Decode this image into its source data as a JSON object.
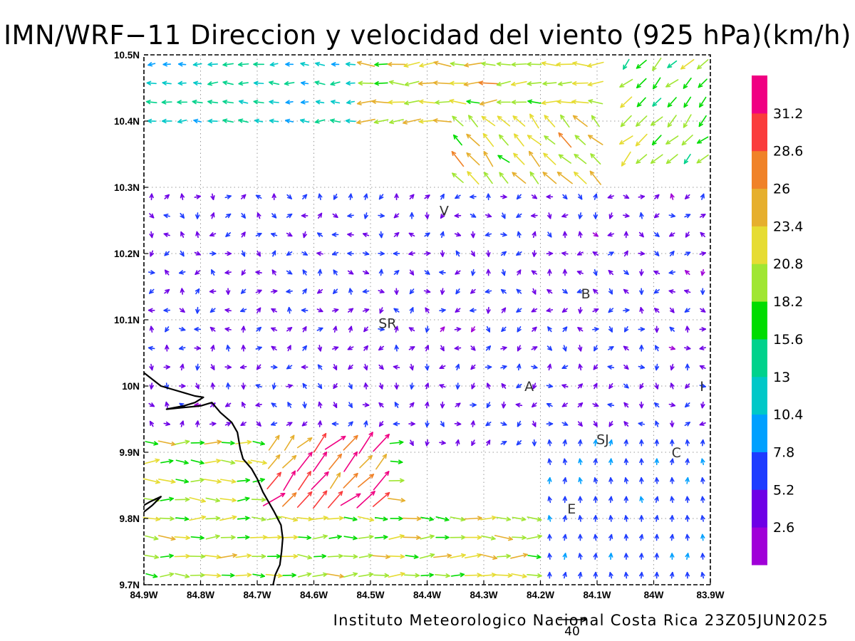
{
  "title": "IMN/WRF−11 Direccion y velocidad del viento (925 hPa)(km/h)",
  "footer": "Instituto Meteorologico Nacional Costa Rica 23Z05JUN2025",
  "reference_vector": {
    "value": 40,
    "label": "40"
  },
  "map": {
    "lon_range": [
      -84.9,
      -83.9
    ],
    "lat_range": [
      9.7,
      10.5
    ],
    "lon_ticks": [
      {
        "value": -84.9,
        "label": "84.9W"
      },
      {
        "value": -84.8,
        "label": "84.8W"
      },
      {
        "value": -84.7,
        "label": "84.7W"
      },
      {
        "value": -84.6,
        "label": "84.6W"
      },
      {
        "value": -84.5,
        "label": "84.5W"
      },
      {
        "value": -84.4,
        "label": "84.4W"
      },
      {
        "value": -84.3,
        "label": "84.3W"
      },
      {
        "value": -84.2,
        "label": "84.2W"
      },
      {
        "value": -84.1,
        "label": "84.1W"
      },
      {
        "value": -84.0,
        "label": "84W"
      },
      {
        "value": -83.9,
        "label": "83.9W"
      }
    ],
    "lat_ticks": [
      {
        "value": 9.7,
        "label": "9.7N"
      },
      {
        "value": 9.8,
        "label": "9.8N"
      },
      {
        "value": 9.9,
        "label": "9.9N"
      },
      {
        "value": 10.0,
        "label": "10N"
      },
      {
        "value": 10.1,
        "label": "10.1N"
      },
      {
        "value": 10.2,
        "label": "10.2N"
      },
      {
        "value": 10.3,
        "label": "10.3N"
      },
      {
        "value": 10.4,
        "label": "10.4N"
      },
      {
        "value": 10.5,
        "label": "10.5N"
      }
    ],
    "grid": "dotted",
    "coastline": [
      [
        [
          -84.9,
          10.02
        ],
        [
          -84.87,
          10.0
        ],
        [
          -84.83,
          9.99
        ],
        [
          -84.81,
          9.985
        ],
        [
          -84.795,
          9.983
        ],
        [
          -84.81,
          9.975
        ],
        [
          -84.83,
          9.97
        ],
        [
          -84.86,
          9.965
        ],
        [
          -84.8,
          9.97
        ],
        [
          -84.78,
          9.975
        ],
        [
          -84.765,
          9.96
        ],
        [
          -84.745,
          9.945
        ],
        [
          -84.735,
          9.93
        ],
        [
          -84.73,
          9.905
        ],
        [
          -84.725,
          9.89
        ],
        [
          -84.71,
          9.875
        ],
        [
          -84.7,
          9.86
        ],
        [
          -84.69,
          9.84
        ],
        [
          -84.67,
          9.81
        ],
        [
          -84.658,
          9.79
        ],
        [
          -84.655,
          9.77
        ],
        [
          -84.657,
          9.75
        ],
        [
          -84.66,
          9.73
        ],
        [
          -84.668,
          9.715
        ],
        [
          -84.672,
          9.7
        ]
      ],
      [
        [
          -84.9,
          9.81
        ],
        [
          -84.885,
          9.82
        ],
        [
          -84.87,
          9.833
        ],
        [
          -84.89,
          9.825
        ],
        [
          -84.9,
          9.82
        ]
      ]
    ],
    "place_labels": [
      {
        "name": "V",
        "lon": -84.37,
        "lat": 10.265
      },
      {
        "name": "B",
        "lon": -84.12,
        "lat": 10.14
      },
      {
        "name": "SR",
        "lon": -84.47,
        "lat": 10.095
      },
      {
        "name": "A",
        "lon": -84.22,
        "lat": 10.0
      },
      {
        "name": "I",
        "lon": -83.915,
        "lat": 10.0
      },
      {
        "name": "SJ",
        "lon": -84.09,
        "lat": 9.92
      },
      {
        "name": "C",
        "lon": -83.96,
        "lat": 9.9
      },
      {
        "name": "E",
        "lon": -84.145,
        "lat": 9.815
      }
    ]
  },
  "wind_field": {
    "regions": [
      {
        "name": "northern jet",
        "lon": [
          -84.52,
          -84.1
        ],
        "lat": [
          10.38,
          10.5
        ],
        "direction_toward": "W",
        "speed": 22
      },
      {
        "name": "northwest flow",
        "lon": [
          -84.9,
          -84.52
        ],
        "lat": [
          10.38,
          10.5
        ],
        "direction_toward": "W",
        "speed": 12
      },
      {
        "name": "northeast corner",
        "lon": [
          -84.05,
          -83.9
        ],
        "lat": [
          10.32,
          10.5
        ],
        "direction_toward": "SW",
        "speed": 19
      },
      {
        "name": "jet descent",
        "lon": [
          -84.35,
          -84.08
        ],
        "lat": [
          10.3,
          10.4
        ],
        "direction_toward": "NW",
        "speed": 22
      },
      {
        "name": "central weak",
        "lon": [
          -84.9,
          -83.9
        ],
        "lat": [
          9.9,
          10.3
        ],
        "direction_toward": "variable",
        "speed": 5
      },
      {
        "name": "southwest strong",
        "lon": [
          -84.9,
          -84.43
        ],
        "lat": [
          9.7,
          9.92
        ],
        "direction_toward": "E",
        "speed": 20
      },
      {
        "name": "southwest max",
        "lon": [
          -84.68,
          -84.48
        ],
        "lat": [
          9.8,
          9.92
        ],
        "direction_toward": "NE",
        "speed": 29
      },
      {
        "name": "southern strip",
        "lon": [
          -84.43,
          -84.2
        ],
        "lat": [
          9.7,
          9.8
        ],
        "direction_toward": "E",
        "speed": 21
      },
      {
        "name": "southeast mild",
        "lon": [
          -84.2,
          -83.9
        ],
        "lat": [
          9.7,
          9.92
        ],
        "direction_toward": "N",
        "speed": 7
      }
    ]
  },
  "colorbar": {
    "unit": "km/h",
    "levels": [
      "2.6",
      "5.2",
      "7.8",
      "10.4",
      "13",
      "15.6",
      "18.2",
      "20.8",
      "23.4",
      "26",
      "28.6",
      "31.2"
    ],
    "colors": [
      "#a000d8",
      "#6e00e6",
      "#1e3cff",
      "#00a0ff",
      "#00c8c8",
      "#00d28c",
      "#00dc00",
      "#a0e632",
      "#e6dc32",
      "#e6af2d",
      "#f08228",
      "#fa3c3c",
      "#f00082"
    ]
  }
}
